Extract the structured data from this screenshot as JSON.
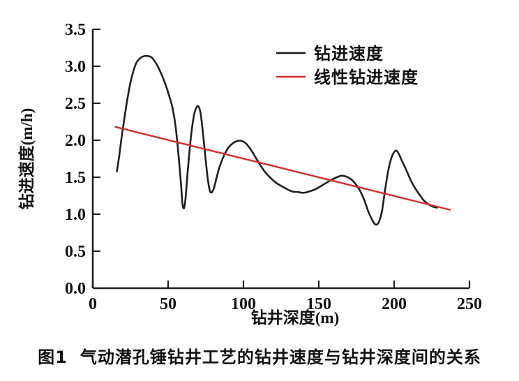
{
  "figure": {
    "caption_prefix": "图1",
    "caption_text": "气动潜孔锤钻井工艺的钻井速度与钻井深度间的关系"
  },
  "chart_data": {
    "type": "line",
    "title": "",
    "xlabel": "钻井深度(m)",
    "ylabel": "钻进速度(m/h)",
    "xlim": [
      0,
      250
    ],
    "ylim": [
      0,
      3.5
    ],
    "xticks": [
      0,
      50,
      100,
      150,
      200,
      250
    ],
    "xtick_labels": [
      "0",
      "50",
      "100",
      "150",
      "200",
      "250"
    ],
    "yticks": [
      0,
      0.5,
      1.0,
      1.5,
      2.0,
      2.5,
      3.0,
      3.5
    ],
    "ytick_labels": [
      "0.0",
      "0.5",
      "1.0",
      "1.5",
      "2.0",
      "2.5",
      "3.0",
      "3.5"
    ],
    "grid": false,
    "legend_position": "inside-top-right",
    "background_color": "#ffffff",
    "axis_color": "#1f1f1f",
    "text_color": "#111111",
    "series": [
      {
        "name": "钻进速度",
        "color": "#1f1f1f",
        "stroke_width": 2.6,
        "points": [
          [
            16,
            1.58
          ],
          [
            17.5,
            1.78
          ],
          [
            19,
            2.02
          ],
          [
            21,
            2.3
          ],
          [
            23,
            2.56
          ],
          [
            25,
            2.78
          ],
          [
            27,
            2.94
          ],
          [
            29,
            3.05
          ],
          [
            31,
            3.1
          ],
          [
            33,
            3.13
          ],
          [
            36,
            3.14
          ],
          [
            39,
            3.12
          ],
          [
            42,
            3.04
          ],
          [
            45,
            2.92
          ],
          [
            48,
            2.77
          ],
          [
            51,
            2.58
          ],
          [
            53,
            2.43
          ],
          [
            55,
            2.18
          ],
          [
            57,
            1.78
          ],
          [
            58.5,
            1.42
          ],
          [
            59.5,
            1.15
          ],
          [
            60.5,
            1.08
          ],
          [
            61.5,
            1.2
          ],
          [
            63,
            1.58
          ],
          [
            65,
            2.02
          ],
          [
            67,
            2.32
          ],
          [
            68.5,
            2.43
          ],
          [
            70,
            2.46
          ],
          [
            71.5,
            2.37
          ],
          [
            73,
            2.12
          ],
          [
            75,
            1.72
          ],
          [
            76.5,
            1.45
          ],
          [
            78,
            1.3
          ],
          [
            80,
            1.33
          ],
          [
            82,
            1.48
          ],
          [
            84,
            1.63
          ],
          [
            87,
            1.79
          ],
          [
            90,
            1.9
          ],
          [
            93,
            1.96
          ],
          [
            96,
            1.99
          ],
          [
            99,
            1.99
          ],
          [
            102,
            1.95
          ],
          [
            105,
            1.87
          ],
          [
            108,
            1.77
          ],
          [
            111,
            1.67
          ],
          [
            114,
            1.58
          ],
          [
            118,
            1.49
          ],
          [
            122,
            1.42
          ],
          [
            127,
            1.36
          ],
          [
            132,
            1.31
          ],
          [
            136,
            1.3
          ],
          [
            140,
            1.29
          ],
          [
            144,
            1.31
          ],
          [
            148,
            1.34
          ],
          [
            153,
            1.4
          ],
          [
            158,
            1.46
          ],
          [
            162,
            1.5
          ],
          [
            165,
            1.52
          ],
          [
            168,
            1.51
          ],
          [
            171,
            1.48
          ],
          [
            174,
            1.42
          ],
          [
            177,
            1.33
          ],
          [
            180,
            1.2
          ],
          [
            183,
            1.03
          ],
          [
            185.5,
            0.92
          ],
          [
            187,
            0.87
          ],
          [
            188.5,
            0.86
          ],
          [
            190,
            0.9
          ],
          [
            192,
            1.05
          ],
          [
            194,
            1.33
          ],
          [
            196,
            1.58
          ],
          [
            198,
            1.75
          ],
          [
            200,
            1.84
          ],
          [
            201.5,
            1.86
          ],
          [
            203,
            1.82
          ],
          [
            205,
            1.73
          ],
          [
            208,
            1.6
          ],
          [
            211,
            1.46
          ],
          [
            214,
            1.35
          ],
          [
            217,
            1.26
          ],
          [
            220,
            1.18
          ],
          [
            223,
            1.13
          ],
          [
            226,
            1.1
          ],
          [
            228.5,
            1.09
          ]
        ]
      },
      {
        "name": "线性钻进速度",
        "color": "#d92b2b",
        "stroke_width": 2.4,
        "points": [
          [
            15,
            2.18
          ],
          [
            237,
            1.06
          ]
        ]
      }
    ]
  }
}
